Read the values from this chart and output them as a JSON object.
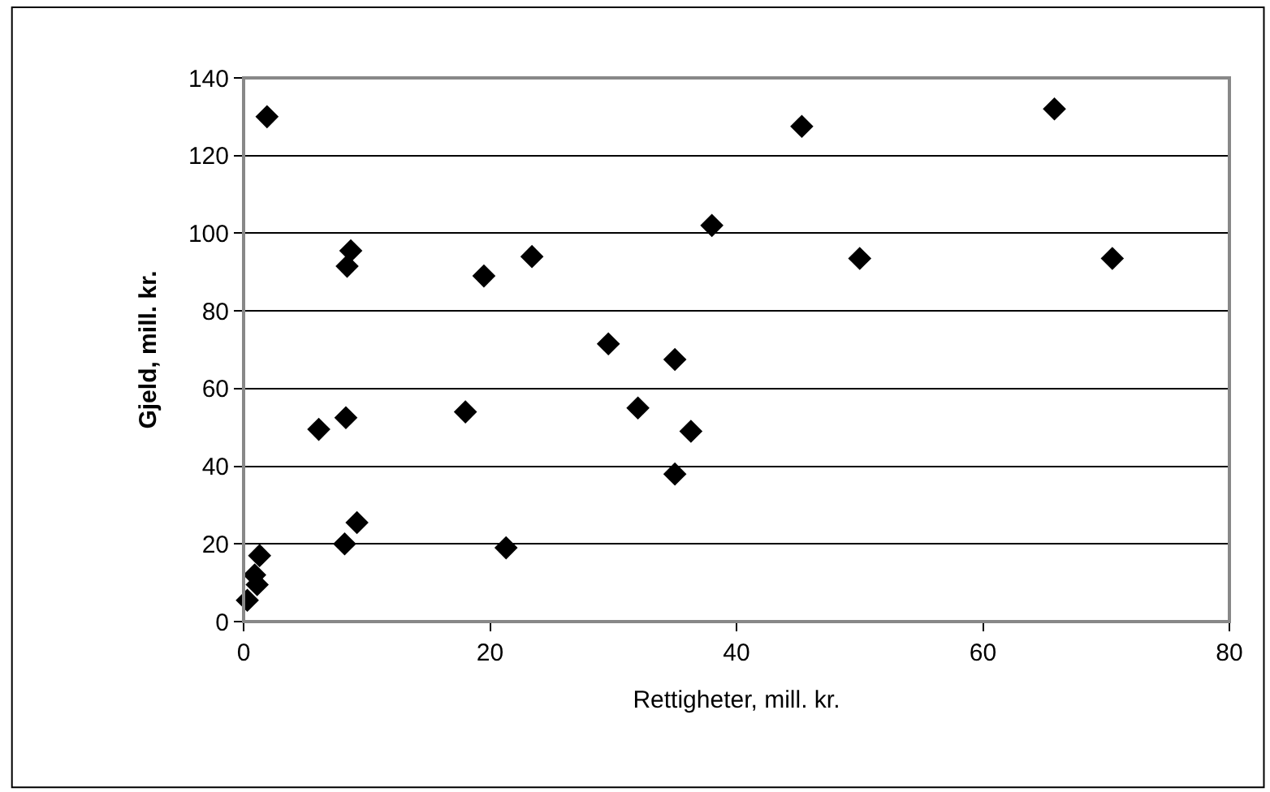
{
  "chart_data": {
    "type": "scatter",
    "xlabel": "Rettigheter, mill. kr.",
    "ylabel": "Gjeld, mill. kr.",
    "x": [
      0.3,
      0.9,
      1.1,
      1.3,
      1.9,
      6.1,
      8.2,
      8.3,
      8.4,
      8.7,
      9.2,
      18,
      19.5,
      21.3,
      23.4,
      29.6,
      32,
      35,
      35,
      36.3,
      38,
      45.3,
      50,
      65.8,
      70.5
    ],
    "series": [
      {
        "color": "#000000",
        "values": [
          5.5,
          12,
          9.5,
          17,
          130,
          49.5,
          20,
          52.5,
          91.5,
          95.5,
          25.5,
          54,
          89,
          19,
          94,
          71.5,
          55,
          67.5,
          38,
          49,
          102,
          127.5,
          93.5,
          132,
          93.5
        ]
      }
    ],
    "xlim": [
      0,
      80
    ],
    "xticks": [
      0,
      20,
      40,
      60,
      80
    ],
    "ylim": [
      0,
      140
    ],
    "yticks": [
      0,
      20,
      40,
      60,
      80,
      100,
      120,
      140
    ],
    "grid": "y",
    "marker": "diamond",
    "legend": false
  }
}
